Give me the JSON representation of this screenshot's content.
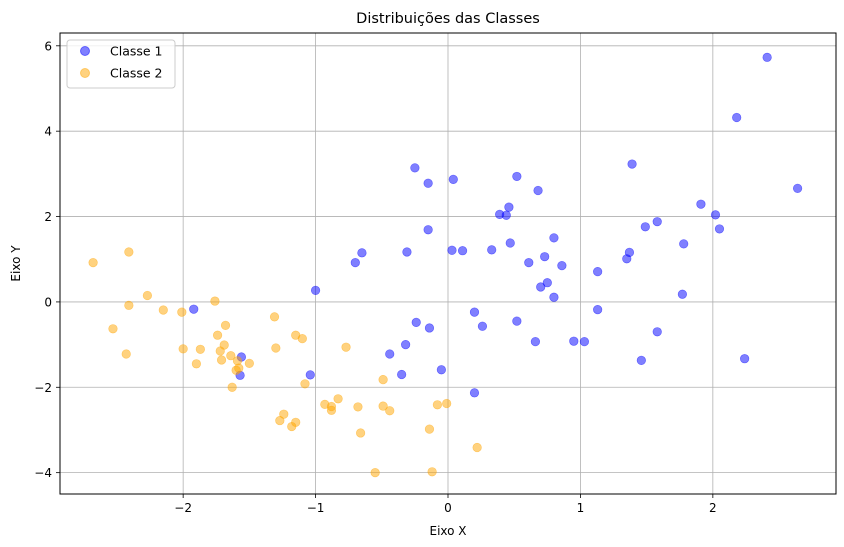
{
  "chart_data": {
    "type": "scatter",
    "title": "Distribuições das Classes",
    "xlabel": "Eixo X",
    "ylabel": "Eixo Y",
    "xlim": [
      -2.93,
      2.93
    ],
    "ylim": [
      -4.5,
      6.3
    ],
    "xticks": [
      -2,
      -1,
      0,
      1,
      2
    ],
    "yticks": [
      -4,
      -2,
      0,
      2,
      4,
      6
    ],
    "xtick_labels": [
      "−2",
      "−1",
      "0",
      "1",
      "2"
    ],
    "ytick_labels": [
      "−4",
      "−2",
      "0",
      "2",
      "4",
      "6"
    ],
    "grid": true,
    "legend_position": "top-left",
    "series": [
      {
        "name": "Classe 1",
        "color": "#0000ff",
        "points": [
          [
            -1.92,
            -0.17
          ],
          [
            -1.56,
            -1.29
          ],
          [
            -1.57,
            -1.72
          ],
          [
            -1.04,
            -1.71
          ],
          [
            -1.0,
            0.27
          ],
          [
            -0.7,
            0.92
          ],
          [
            -0.65,
            1.15
          ],
          [
            -0.31,
            1.17
          ],
          [
            -0.32,
            -1.0
          ],
          [
            -0.35,
            -1.7
          ],
          [
            -0.44,
            -1.22
          ],
          [
            -0.25,
            3.14
          ],
          [
            -0.24,
            -0.48
          ],
          [
            -0.15,
            2.78
          ],
          [
            -0.15,
            1.69
          ],
          [
            -0.14,
            -0.61
          ],
          [
            -0.05,
            -1.59
          ],
          [
            0.03,
            1.21
          ],
          [
            0.04,
            2.87
          ],
          [
            0.11,
            1.2
          ],
          [
            0.2,
            -0.24
          ],
          [
            0.2,
            -2.13
          ],
          [
            0.26,
            -0.57
          ],
          [
            0.33,
            1.22
          ],
          [
            0.39,
            2.05
          ],
          [
            0.44,
            2.03
          ],
          [
            0.46,
            2.22
          ],
          [
            0.47,
            1.38
          ],
          [
            0.52,
            2.94
          ],
          [
            0.52,
            -0.45
          ],
          [
            0.61,
            0.92
          ],
          [
            0.66,
            -0.93
          ],
          [
            0.68,
            2.61
          ],
          [
            0.7,
            0.35
          ],
          [
            0.73,
            1.06
          ],
          [
            0.75,
            0.45
          ],
          [
            0.8,
            1.5
          ],
          [
            0.8,
            0.11
          ],
          [
            0.86,
            0.85
          ],
          [
            0.95,
            -0.92
          ],
          [
            1.03,
            -0.93
          ],
          [
            1.13,
            0.71
          ],
          [
            1.13,
            -0.18
          ],
          [
            1.35,
            1.01
          ],
          [
            1.37,
            1.16
          ],
          [
            1.39,
            3.23
          ],
          [
            1.46,
            -1.37
          ],
          [
            1.49,
            1.76
          ],
          [
            1.58,
            1.88
          ],
          [
            1.58,
            -0.7
          ],
          [
            1.77,
            0.18
          ],
          [
            1.78,
            1.36
          ],
          [
            1.91,
            2.29
          ],
          [
            2.02,
            2.04
          ],
          [
            2.05,
            1.71
          ],
          [
            2.18,
            4.32
          ],
          [
            2.24,
            -1.33
          ],
          [
            2.41,
            5.73
          ],
          [
            2.64,
            2.66
          ]
        ]
      },
      {
        "name": "Classe 2",
        "color": "#ffa500",
        "points": [
          [
            -2.68,
            0.92
          ],
          [
            -2.53,
            -0.63
          ],
          [
            -2.43,
            -1.22
          ],
          [
            -2.41,
            1.17
          ],
          [
            -2.41,
            -0.08
          ],
          [
            -2.27,
            0.15
          ],
          [
            -2.15,
            -0.19
          ],
          [
            -2.01,
            -0.24
          ],
          [
            -2.0,
            -1.1
          ],
          [
            -1.9,
            -1.45
          ],
          [
            -1.87,
            -1.11
          ],
          [
            -1.76,
            0.02
          ],
          [
            -1.74,
            -0.78
          ],
          [
            -1.72,
            -1.15
          ],
          [
            -1.71,
            -1.36
          ],
          [
            -1.69,
            -1.01
          ],
          [
            -1.68,
            -0.55
          ],
          [
            -1.64,
            -1.26
          ],
          [
            -1.63,
            -2.0
          ],
          [
            -1.6,
            -1.6
          ],
          [
            -1.59,
            -1.38
          ],
          [
            -1.58,
            -1.55
          ],
          [
            -1.5,
            -1.44
          ],
          [
            -1.31,
            -0.35
          ],
          [
            -1.3,
            -1.08
          ],
          [
            -1.27,
            -2.78
          ],
          [
            -1.24,
            -2.63
          ],
          [
            -1.18,
            -2.92
          ],
          [
            -1.15,
            -2.82
          ],
          [
            -1.15,
            -0.78
          ],
          [
            -1.1,
            -0.86
          ],
          [
            -1.08,
            -1.92
          ],
          [
            -0.93,
            -2.4
          ],
          [
            -0.88,
            -2.45
          ],
          [
            -0.88,
            -2.54
          ],
          [
            -0.83,
            -2.27
          ],
          [
            -0.77,
            -1.06
          ],
          [
            -0.68,
            -2.46
          ],
          [
            -0.66,
            -3.07
          ],
          [
            -0.55,
            -4.0
          ],
          [
            -0.49,
            -2.44
          ],
          [
            -0.49,
            -1.82
          ],
          [
            -0.44,
            -2.55
          ],
          [
            -0.14,
            -2.98
          ],
          [
            -0.12,
            -3.98
          ],
          [
            -0.08,
            -2.41
          ],
          [
            -0.01,
            -2.38
          ],
          [
            0.22,
            -3.41
          ]
        ]
      }
    ]
  }
}
